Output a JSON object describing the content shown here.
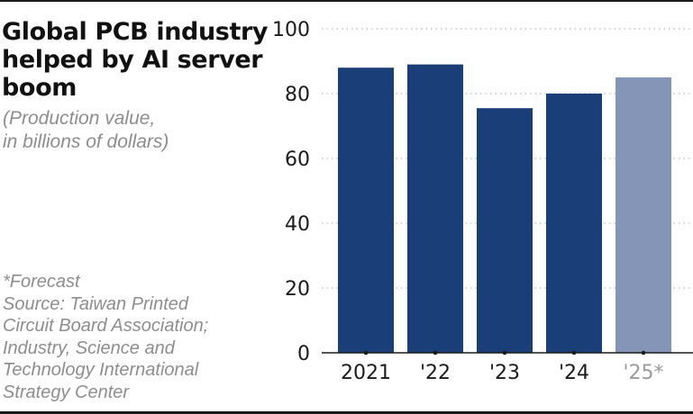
{
  "title": "Global PCB industry helped by AI server boom",
  "subtitle_lines": [
    "(Production value,",
    "in billions of dollars)"
  ],
  "footnote_lines": [
    "*Forecast",
    "Source: Taiwan Printed",
    "Circuit Board Association;",
    "Industry, Science and",
    "Technology International",
    "Strategy Center"
  ],
  "colors": {
    "actual": "#1a3f78",
    "forecast": "#8595b7",
    "grid": "#b5b5b5",
    "text": "#1b1b1b",
    "forecast_label": "#9a9a9a"
  },
  "chart_data": {
    "type": "bar",
    "categories": [
      "2021",
      "'22",
      "'23",
      "'24",
      "'25*"
    ],
    "values": [
      88,
      89,
      75.5,
      80,
      85
    ],
    "forecast": [
      false,
      false,
      false,
      false,
      true
    ],
    "ylim": [
      0,
      100
    ],
    "yticks": [
      0,
      20,
      40,
      60,
      80,
      100
    ],
    "grid": true,
    "title": "Global PCB industry helped by AI server boom",
    "xlabel": "",
    "ylabel": "(Production value, in billions of dollars)"
  }
}
